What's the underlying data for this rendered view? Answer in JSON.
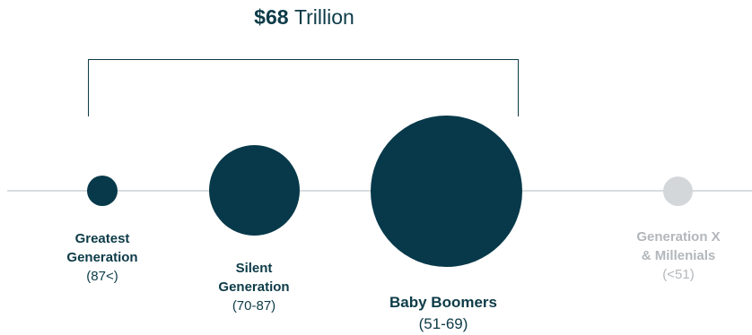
{
  "headline": {
    "amount": "$68",
    "unit": "Trillion"
  },
  "generations": [
    {
      "name_lines": [
        "Greatest",
        "Generation"
      ],
      "age": "(87<)",
      "included": true
    },
    {
      "name_lines": [
        "Silent",
        "Generation"
      ],
      "age": "(70-87)",
      "included": true
    },
    {
      "name_lines": [
        "Baby Boomers"
      ],
      "age": "(51-69)",
      "included": true
    },
    {
      "name_lines": [
        "Generation X",
        "& Millenials"
      ],
      "age": "(<51)",
      "included": false
    }
  ],
  "colors": {
    "included": "#07394a",
    "excluded": "#d4d7da",
    "timeline": "#d9dcdf",
    "excluded_text": "#b3b7bb"
  }
}
